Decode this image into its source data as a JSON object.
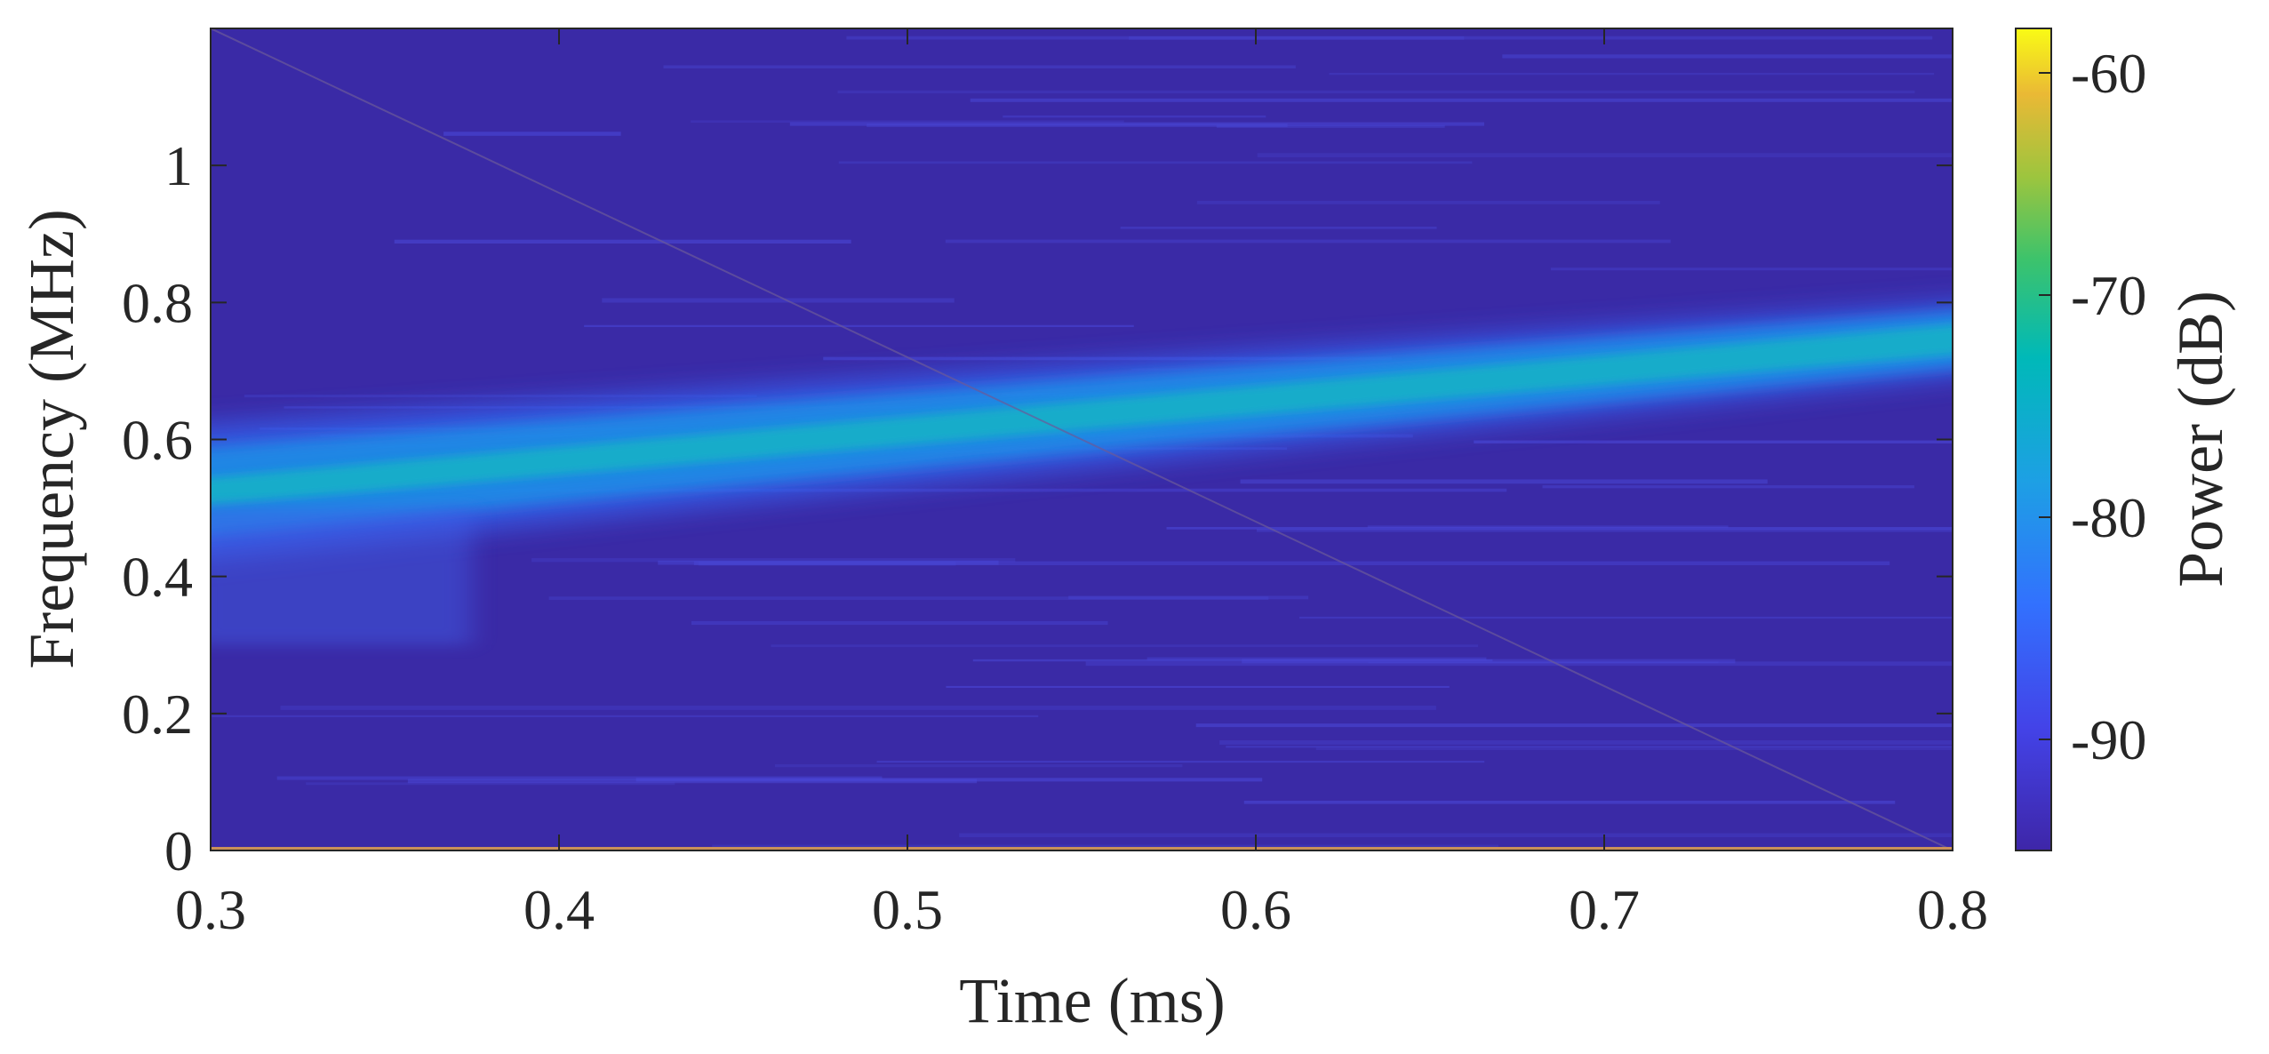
{
  "chart_data": {
    "type": "heatmap",
    "title": "",
    "xlabel": "Time (ms)",
    "ylabel": "Frequency (MHz)",
    "xlim": [
      0.3,
      0.8
    ],
    "ylim": [
      0,
      1.2
    ],
    "xticks": [
      {
        "value": 0.3,
        "label": "0.3"
      },
      {
        "value": 0.4,
        "label": "0.4"
      },
      {
        "value": 0.5,
        "label": "0.5"
      },
      {
        "value": 0.6,
        "label": "0.6"
      },
      {
        "value": 0.7,
        "label": "0.7"
      },
      {
        "value": 0.8,
        "label": "0.8"
      }
    ],
    "yticks": [
      {
        "value": 0,
        "label": "0"
      },
      {
        "value": 0.2,
        "label": "0.2"
      },
      {
        "value": 0.4,
        "label": "0.4"
      },
      {
        "value": 0.6,
        "label": "0.6"
      },
      {
        "value": 0.8,
        "label": "0.8"
      },
      {
        "value": 1.0,
        "label": "1"
      }
    ],
    "colorbar": {
      "label": "Power (dB)",
      "range": [
        -95,
        -58
      ],
      "colormap": "parula",
      "ticks": [
        {
          "value": -60,
          "label": "-60"
        },
        {
          "value": -70,
          "label": "-70"
        },
        {
          "value": -80,
          "label": "-80"
        },
        {
          "value": -90,
          "label": "-90"
        }
      ]
    },
    "background_power_db": -93,
    "signal_band": {
      "description": "linear chirp ridge",
      "center_start": {
        "time": 0.3,
        "freq": 0.52
      },
      "center_end": {
        "time": 0.8,
        "freq": 0.75
      },
      "peak_power_db": -72
    },
    "diagonal_line": {
      "start": {
        "time": 0.3,
        "freq": 1.2
      },
      "end": {
        "time": 0.8,
        "freq": 0.0
      }
    },
    "grid": false,
    "legend": "none"
  }
}
